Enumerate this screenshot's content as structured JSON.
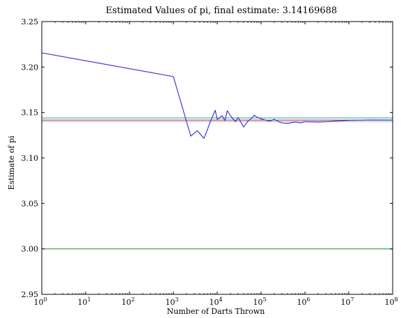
{
  "chart_data": {
    "type": "line",
    "title": "Estimated Values of pi, final estimate: 3.14169688",
    "xlabel": "Number of Darts Thrown",
    "ylabel": "Estimate of pi",
    "xscale": "log",
    "xlim": [
      1,
      100000000
    ],
    "ylim": [
      2.95,
      3.25
    ],
    "x_ticks": [
      {
        "value": 1,
        "base": "10",
        "exp": "0"
      },
      {
        "value": 10,
        "base": "10",
        "exp": "1"
      },
      {
        "value": 100,
        "base": "10",
        "exp": "2"
      },
      {
        "value": 1000,
        "base": "10",
        "exp": "3"
      },
      {
        "value": 10000,
        "base": "10",
        "exp": "4"
      },
      {
        "value": 100000,
        "base": "10",
        "exp": "5"
      },
      {
        "value": 1000000,
        "base": "10",
        "exp": "6"
      },
      {
        "value": 10000000,
        "base": "10",
        "exp": "7"
      },
      {
        "value": 100000000,
        "base": "10",
        "exp": "8"
      }
    ],
    "y_ticks": [
      {
        "value": 2.95,
        "label": "2.95"
      },
      {
        "value": 3.0,
        "label": "3.00"
      },
      {
        "value": 3.05,
        "label": "3.05"
      },
      {
        "value": 3.1,
        "label": "3.10"
      },
      {
        "value": 3.15,
        "label": "3.15"
      },
      {
        "value": 3.2,
        "label": "3.20"
      },
      {
        "value": 3.25,
        "label": "3.25"
      }
    ],
    "grid": false,
    "series": [
      {
        "color": "#3b3bdf",
        "points": [
          [
            1,
            3.2156
          ],
          [
            1000,
            3.1895
          ],
          [
            2500,
            3.124
          ],
          [
            3500,
            3.13
          ],
          [
            5000,
            3.1215
          ],
          [
            7000,
            3.14
          ],
          [
            9000,
            3.1525
          ],
          [
            10000,
            3.1425
          ],
          [
            13000,
            3.1465
          ],
          [
            15000,
            3.141
          ],
          [
            17000,
            3.152
          ],
          [
            20000,
            3.1465
          ],
          [
            23000,
            3.143
          ],
          [
            26000,
            3.14
          ],
          [
            30000,
            3.1445
          ],
          [
            35000,
            3.139
          ],
          [
            40000,
            3.134
          ],
          [
            50000,
            3.1405
          ],
          [
            60000,
            3.1435
          ],
          [
            70000,
            3.147
          ],
          [
            80000,
            3.145
          ],
          [
            100000,
            3.143
          ],
          [
            130000,
            3.1415
          ],
          [
            160000,
            3.1405
          ],
          [
            200000,
            3.1425
          ],
          [
            250000,
            3.14
          ],
          [
            300000,
            3.1385
          ],
          [
            400000,
            3.138
          ],
          [
            600000,
            3.1395
          ],
          [
            800000,
            3.1385
          ],
          [
            1000000,
            3.14
          ],
          [
            2000000,
            3.1395
          ],
          [
            5000000,
            3.1405
          ],
          [
            10000000,
            3.1413
          ],
          [
            30000000,
            3.1418
          ],
          [
            100000000,
            3.1417
          ]
        ]
      }
    ],
    "reference_lines": [
      {
        "y": 3.144,
        "color": "#3dbdbd"
      },
      {
        "y": 3.1416,
        "color": "#d84848"
      },
      {
        "y": 3.14,
        "color": "#c7c7cf"
      },
      {
        "y": 3.0,
        "color": "#2f9b2f"
      }
    ]
  }
}
